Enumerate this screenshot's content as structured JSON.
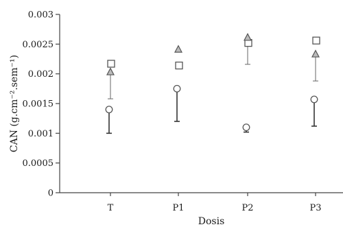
{
  "chart_data": {
    "type": "scatter",
    "xlabel": "Dosis",
    "ylabel": "CAN (g.cm⁻².sem⁻¹)",
    "categories": [
      "T",
      "P1",
      "P2",
      "P3"
    ],
    "ylim": [
      0,
      0.003
    ],
    "yticks": [
      {
        "value": 0,
        "label": "0"
      },
      {
        "value": 0.0005,
        "label": "0.0005"
      },
      {
        "value": 0.001,
        "label": "0.001"
      },
      {
        "value": 0.0015,
        "label": "0.0015"
      },
      {
        "value": 0.002,
        "label": "0.002"
      },
      {
        "value": 0.0025,
        "label": "0.0025"
      },
      {
        "value": 0.003,
        "label": "0.003"
      }
    ],
    "grid": false,
    "legend": false,
    "series": [
      {
        "marker": "square",
        "values": [
          0.00217,
          0.00214,
          0.00252,
          0.00256
        ],
        "errors": [
          null,
          null,
          null,
          null
        ],
        "color": "#555555"
      },
      {
        "marker": "triangle",
        "values": [
          0.00203,
          0.00241,
          0.00261,
          0.00233
        ],
        "errors": [
          0.00045,
          null,
          0.00045,
          0.00045
        ],
        "color": "#555555"
      },
      {
        "marker": "circle",
        "values": [
          0.0014,
          0.00175,
          0.0011,
          0.00157
        ],
        "errors": [
          0.0004,
          0.00055,
          8e-05,
          0.00045
        ],
        "color": "#555555"
      }
    ]
  }
}
